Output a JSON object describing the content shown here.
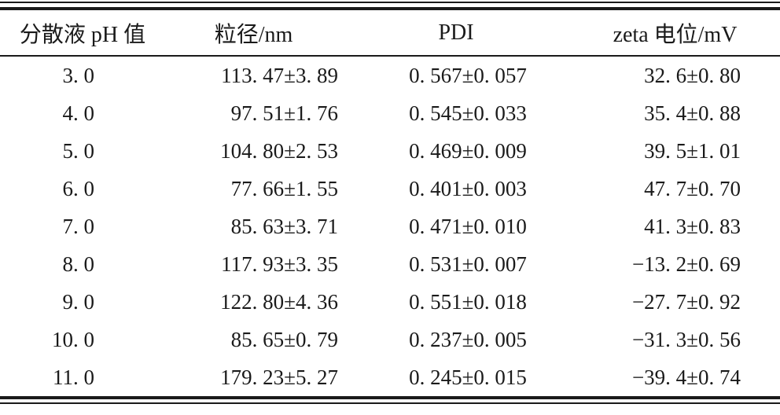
{
  "table": {
    "columns": [
      {
        "label": "分散液 pH 值"
      },
      {
        "label": "粒径/nm"
      },
      {
        "label": "PDI"
      },
      {
        "label": "zeta 电位/mV"
      }
    ],
    "rows": [
      {
        "ph": "3. 0",
        "size": "113. 47±3. 89",
        "pdi": "0. 567±0. 057",
        "zeta": "32. 6±0. 80"
      },
      {
        "ph": "4. 0",
        "size": "97. 51±1. 76",
        "pdi": "0. 545±0. 033",
        "zeta": "35. 4±0. 88"
      },
      {
        "ph": "5. 0",
        "size": "104. 80±2. 53",
        "pdi": "0. 469±0. 009",
        "zeta": "39. 5±1. 01"
      },
      {
        "ph": "6. 0",
        "size": "77. 66±1. 55",
        "pdi": "0. 401±0. 003",
        "zeta": "47. 7±0. 70"
      },
      {
        "ph": "7. 0",
        "size": "85. 63±3. 71",
        "pdi": "0. 471±0. 010",
        "zeta": "41. 3±0. 83"
      },
      {
        "ph": "8. 0",
        "size": "117. 93±3. 35",
        "pdi": "0. 531±0. 007",
        "zeta": "−13. 2±0. 69"
      },
      {
        "ph": "9. 0",
        "size": "122. 80±4. 36",
        "pdi": "0. 551±0. 018",
        "zeta": "−27. 7±0. 92"
      },
      {
        "ph": "10. 0",
        "size": "85. 65±0. 79",
        "pdi": "0. 237±0. 005",
        "zeta": "−31. 3±0. 56"
      },
      {
        "ph": "11. 0",
        "size": "179. 23±5. 27",
        "pdi": "0. 245±0. 015",
        "zeta": "−39. 4±0. 74"
      }
    ],
    "colors": {
      "rule": "#1a1a1a",
      "text": "#1a1a1a",
      "background": "#ffffff"
    }
  }
}
